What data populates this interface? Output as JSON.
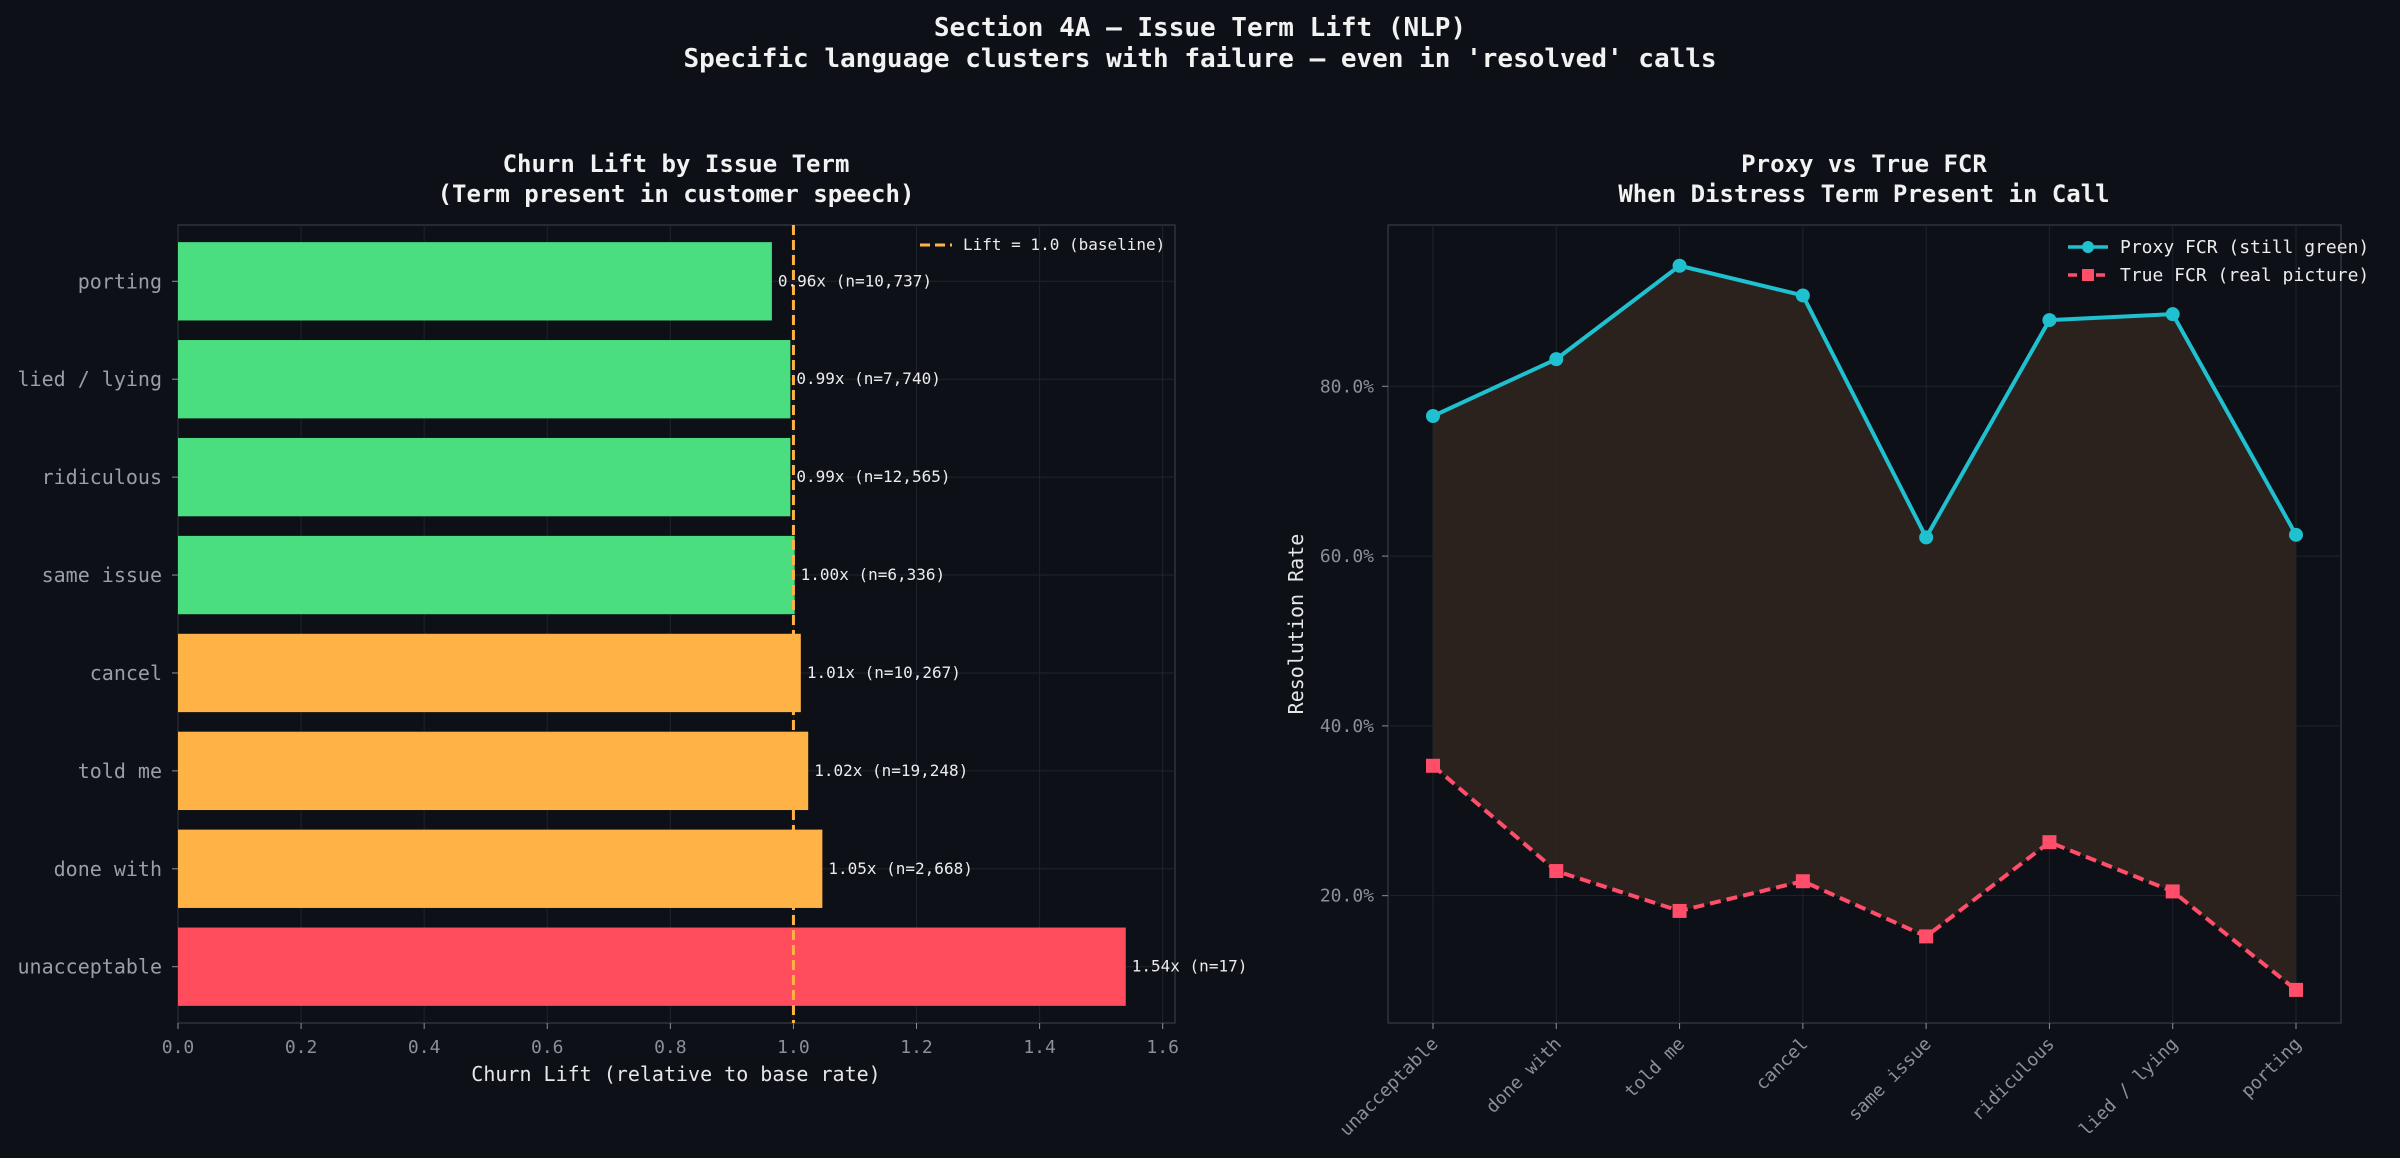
{
  "suptitle": {
    "line1": "Section 4A — Issue Term Lift (NLP)",
    "line2": "Specific language clusters with failure — even in 'resolved' calls"
  },
  "colors": {
    "background": "#0d1017",
    "green": "#4ade80",
    "orange": "#ffb347",
    "red": "#ff4d5e",
    "baseline": "#ffb347",
    "proxy": "#1fc0cf",
    "true": "#ff4d6a",
    "fill": "#2d241f"
  },
  "chart_data": [
    {
      "type": "bar",
      "orientation": "horizontal",
      "title_line1": "Churn Lift by Issue Term",
      "title_line2": "(Term present in customer speech)",
      "xlabel": "Churn Lift (relative to base rate)",
      "ylabel": "",
      "xlim": [
        0,
        1.62
      ],
      "xticks": [
        "0.0",
        "0.2",
        "0.4",
        "0.6",
        "0.8",
        "1.0",
        "1.2",
        "1.4",
        "1.6"
      ],
      "xtick_values": [
        0,
        0.2,
        0.4,
        0.6,
        0.8,
        1.0,
        1.2,
        1.4,
        1.6
      ],
      "grid": true,
      "baseline_value": 1.0,
      "legend_label": "Lift = 1.0 (baseline)",
      "legend_placement": "top-right",
      "categories": [
        "porting",
        "lied / lying",
        "ridiculous",
        "same issue",
        "cancel",
        "told me",
        "done with",
        "unacceptable"
      ],
      "values": [
        0.965,
        0.995,
        0.995,
        1.002,
        1.012,
        1.024,
        1.047,
        1.54
      ],
      "bar_colors": [
        "green",
        "green",
        "green",
        "green",
        "orange",
        "orange",
        "orange",
        "red"
      ],
      "labels": [
        "0.96x  (n=10,737)",
        "0.99x  (n=7,740)",
        "0.99x  (n=12,565)",
        "1.00x  (n=6,336)",
        "1.01x  (n=10,267)",
        "1.02x  (n=19,248)",
        "1.05x  (n=2,668)",
        "1.54x  (n=17)"
      ]
    },
    {
      "type": "line",
      "title_line1": "Proxy vs True FCR",
      "title_line2": "When Distress Term Present in Call",
      "xlabel": "",
      "ylabel": "Resolution Rate",
      "ylim": [
        0.05,
        0.99
      ],
      "yticks": [
        "20.0%",
        "40.0%",
        "60.0%",
        "80.0%"
      ],
      "ytick_values": [
        0.2,
        0.4,
        0.6,
        0.8
      ],
      "grid": true,
      "legend_placement": "top-right",
      "categories": [
        "unacceptable",
        "done with",
        "told me",
        "cancel",
        "same issue",
        "ridiculous",
        "lied / lying",
        "porting"
      ],
      "series": [
        {
          "name": "Proxy FCR (still green)",
          "values": [
            0.765,
            0.832,
            0.942,
            0.907,
            0.622,
            0.878,
            0.885,
            0.625
          ]
        },
        {
          "name": "True FCR (real picture)",
          "values": [
            0.353,
            0.229,
            0.182,
            0.217,
            0.152,
            0.263,
            0.205,
            0.089
          ]
        }
      ]
    }
  ]
}
